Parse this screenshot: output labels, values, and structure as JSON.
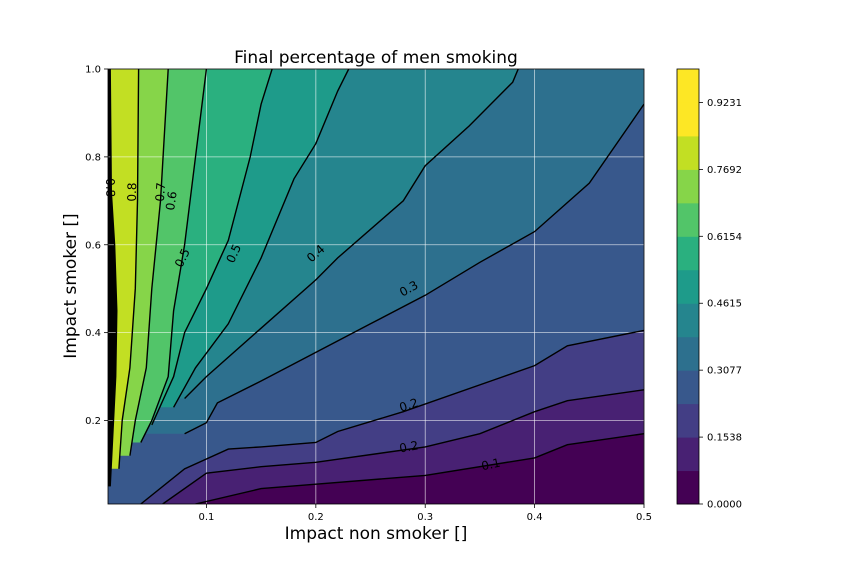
{
  "chart_data": {
    "type": "heatmap",
    "subtype": "filled-contour",
    "title": "Final percentage of men smoking",
    "xlabel": "Impact non smoker []",
    "ylabel": "Impact smoker []",
    "xlim": [
      0.01,
      0.5
    ],
    "ylim": [
      0.01,
      1.0
    ],
    "xticks": [
      0.1,
      0.2,
      0.3,
      0.4,
      0.5
    ],
    "yticks": [
      0.2,
      0.4,
      0.6,
      0.8,
      1.0
    ],
    "xtick_labels": [
      "0.1",
      "0.2",
      "0.3",
      "0.4",
      "0.5"
    ],
    "ytick_labels": [
      "0.2",
      "0.4",
      "0.6",
      "0.8",
      "1.0"
    ],
    "grid": true,
    "colormap": "viridis",
    "colorbar": {
      "levels": [
        0.0,
        0.0769,
        0.1538,
        0.2308,
        0.3077,
        0.3846,
        0.4615,
        0.5385,
        0.6154,
        0.6923,
        0.7692,
        0.8462,
        0.9231,
        1.0
      ],
      "tick_values": [
        0.0,
        0.1538,
        0.3077,
        0.4615,
        0.6154,
        0.7692,
        0.9231
      ],
      "tick_labels": [
        "0.0000",
        "0.1538",
        "0.3077",
        "0.4615",
        "0.6154",
        "0.7692",
        "0.9231"
      ],
      "colors": [
        "#440154",
        "#482173",
        "#433e85",
        "#38588c",
        "#2d708e",
        "#25858e",
        "#1e9b8a",
        "#2ab07f",
        "#52c569",
        "#86d549",
        "#c2df23",
        "#fde725",
        "#fde725"
      ]
    },
    "contour_lines": [
      {
        "label": "0.1",
        "points": [
          [
            0.09,
            0.01
          ],
          [
            0.15,
            0.045
          ],
          [
            0.2,
            0.055
          ],
          [
            0.3,
            0.075
          ],
          [
            0.4,
            0.115
          ],
          [
            0.43,
            0.145
          ],
          [
            0.5,
            0.17
          ]
        ],
        "label_at": [
          0.36,
          0.1
        ]
      },
      {
        "label": "0.2",
        "points": [
          [
            0.06,
            0.01
          ],
          [
            0.1,
            0.08
          ],
          [
            0.15,
            0.095
          ],
          [
            0.2,
            0.105
          ],
          [
            0.3,
            0.14
          ],
          [
            0.35,
            0.17
          ],
          [
            0.4,
            0.22
          ],
          [
            0.43,
            0.245
          ],
          [
            0.5,
            0.27
          ]
        ],
        "label_at": [
          0.285,
          0.14
        ]
      },
      {
        "label": "0.2",
        "points": [
          [
            0.04,
            0.01
          ],
          [
            0.08,
            0.09
          ],
          [
            0.12,
            0.135
          ],
          [
            0.15,
            0.14
          ],
          [
            0.2,
            0.15
          ],
          [
            0.22,
            0.175
          ],
          [
            0.28,
            0.22
          ],
          [
            0.36,
            0.29
          ],
          [
            0.4,
            0.325
          ],
          [
            0.43,
            0.37
          ],
          [
            0.5,
            0.405
          ]
        ],
        "label_at": [
          0.285,
          0.235
        ]
      },
      {
        "label": "0.3",
        "points": [
          [
            0.08,
            0.17
          ],
          [
            0.1,
            0.195
          ],
          [
            0.11,
            0.24
          ],
          [
            0.15,
            0.29
          ],
          [
            0.2,
            0.355
          ],
          [
            0.25,
            0.42
          ],
          [
            0.3,
            0.485
          ],
          [
            0.35,
            0.56
          ],
          [
            0.4,
            0.63
          ],
          [
            0.45,
            0.74
          ],
          [
            0.5,
            0.92
          ]
        ],
        "label_at": [
          0.285,
          0.5
        ]
      },
      {
        "label": "0.4",
        "points": [
          [
            0.08,
            0.25
          ],
          [
            0.1,
            0.3
          ],
          [
            0.15,
            0.41
          ],
          [
            0.2,
            0.52
          ],
          [
            0.22,
            0.57
          ],
          [
            0.28,
            0.7
          ],
          [
            0.3,
            0.78
          ],
          [
            0.34,
            0.87
          ],
          [
            0.38,
            0.97
          ],
          [
            0.385,
            1.0
          ]
        ],
        "label_at": [
          0.2,
          0.58
        ]
      },
      {
        "label": "0.5",
        "points": [
          [
            0.07,
            0.23
          ],
          [
            0.09,
            0.32
          ],
          [
            0.12,
            0.42
          ],
          [
            0.15,
            0.57
          ],
          [
            0.18,
            0.75
          ],
          [
            0.2,
            0.83
          ],
          [
            0.22,
            0.95
          ],
          [
            0.23,
            1.0
          ]
        ],
        "label_at": [
          0.125,
          0.58
        ]
      },
      {
        "label": "0.5",
        "points": [
          [
            0.05,
            0.19
          ],
          [
            0.07,
            0.3
          ],
          [
            0.08,
            0.4
          ],
          [
            0.1,
            0.5
          ],
          [
            0.12,
            0.61
          ],
          [
            0.14,
            0.8
          ],
          [
            0.15,
            0.92
          ],
          [
            0.16,
            1.0
          ]
        ],
        "label_at": [
          0.078,
          0.57
        ]
      },
      {
        "label": "0.6",
        "points": [
          [
            0.04,
            0.15
          ],
          [
            0.05,
            0.2
          ],
          [
            0.065,
            0.3
          ],
          [
            0.07,
            0.45
          ],
          [
            0.08,
            0.6
          ],
          [
            0.09,
            0.8
          ],
          [
            0.1,
            1.0
          ]
        ],
        "label_at": [
          0.068,
          0.7
        ]
      },
      {
        "label": "0.7",
        "points": [
          [
            0.03,
            0.12
          ],
          [
            0.035,
            0.2
          ],
          [
            0.045,
            0.32
          ],
          [
            0.05,
            0.5
          ],
          [
            0.058,
            0.7
          ],
          [
            0.065,
            1.0
          ]
        ],
        "label_at": [
          0.058,
          0.72
        ]
      },
      {
        "label": "0.8",
        "points": [
          [
            0.02,
            0.09
          ],
          [
            0.023,
            0.2
          ],
          [
            0.03,
            0.32
          ],
          [
            0.035,
            0.5
          ],
          [
            0.037,
            0.7
          ],
          [
            0.038,
            1.0
          ]
        ],
        "label_at": [
          0.032,
          0.72
        ]
      },
      {
        "label": "0.8",
        "points": [
          [
            0.012,
            0.05
          ],
          [
            0.015,
            0.2
          ],
          [
            0.017,
            0.3
          ],
          [
            0.018,
            0.45
          ],
          [
            0.016,
            0.6
          ],
          [
            0.013,
            0.72
          ],
          [
            0.012,
            1.0
          ]
        ],
        "label_at": [
          0.012,
          0.73
        ]
      }
    ]
  }
}
